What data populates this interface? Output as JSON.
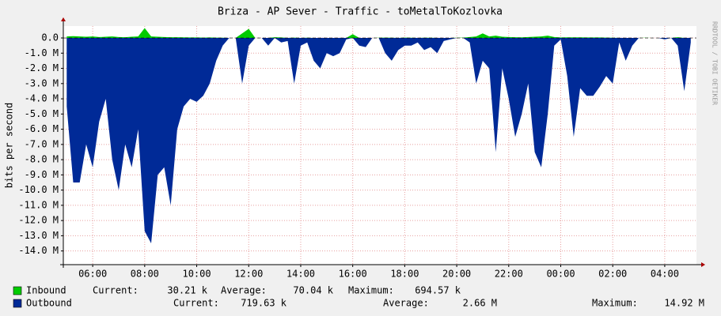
{
  "chart_data": {
    "type": "area",
    "title": "Briza - AP Sever - Traffic - toMetalToKozlovka",
    "y_label": "bits per second",
    "watermark": "RRDTOOL / TOBI OETIKER",
    "grid": true,
    "xlim": [
      4.87,
      29.22
    ],
    "xticks": [
      {
        "value": 6,
        "label": "06:00"
      },
      {
        "value": 8,
        "label": "08:00"
      },
      {
        "value": 10,
        "label": "10:00"
      },
      {
        "value": 12,
        "label": "12:00"
      },
      {
        "value": 14,
        "label": "14:00"
      },
      {
        "value": 16,
        "label": "16:00"
      },
      {
        "value": 18,
        "label": "18:00"
      },
      {
        "value": 20,
        "label": "20:00"
      },
      {
        "value": 22,
        "label": "22:00"
      },
      {
        "value": 24,
        "label": "00:00"
      },
      {
        "value": 26,
        "label": "02:00"
      },
      {
        "value": 28,
        "label": "04:00"
      }
    ],
    "ylim": [
      -14900000,
      780000
    ],
    "yticks": [
      {
        "value": 0,
        "label": "0.0"
      },
      {
        "value": -1000000,
        "label": "-1.0 M"
      },
      {
        "value": -2000000,
        "label": "-2.0 M"
      },
      {
        "value": -3000000,
        "label": "-3.0 M"
      },
      {
        "value": -4000000,
        "label": "-4.0 M"
      },
      {
        "value": -5000000,
        "label": "-5.0 M"
      },
      {
        "value": -6000000,
        "label": "-6.0 M"
      },
      {
        "value": -7000000,
        "label": "-7.0 M"
      },
      {
        "value": -8000000,
        "label": "-8.0 M"
      },
      {
        "value": -9000000,
        "label": "-9.0 M"
      },
      {
        "value": -10000000,
        "label": "-10.0 M"
      },
      {
        "value": -11000000,
        "label": "-11.0 M"
      },
      {
        "value": -12000000,
        "label": "-12.0 M"
      },
      {
        "value": -13000000,
        "label": "-13.0 M"
      },
      {
        "value": -14000000,
        "label": "-14.0 M"
      }
    ],
    "x": [
      5,
      5.25,
      5.5,
      5.75,
      6,
      6.25,
      6.5,
      6.75,
      7,
      7.25,
      7.5,
      7.75,
      8,
      8.25,
      8.5,
      8.75,
      9,
      9.25,
      9.5,
      9.75,
      10,
      10.25,
      10.5,
      10.75,
      11,
      11.25,
      11.5,
      11.75,
      12,
      12.25,
      12.5,
      12.75,
      13,
      13.25,
      13.5,
      13.75,
      14,
      14.25,
      14.5,
      14.75,
      15,
      15.25,
      15.5,
      15.75,
      16,
      16.25,
      16.5,
      16.75,
      17,
      17.25,
      17.5,
      17.75,
      18,
      18.25,
      18.5,
      18.75,
      19,
      19.25,
      19.5,
      19.75,
      20,
      20.25,
      20.5,
      20.75,
      21,
      21.25,
      21.5,
      21.75,
      22,
      22.25,
      22.5,
      22.75,
      23,
      23.25,
      23.5,
      23.75,
      24,
      24.25,
      24.5,
      24.75,
      25,
      25.25,
      25.5,
      25.75,
      26,
      26.25,
      26.5,
      26.75,
      27,
      27.25,
      27.5,
      27.75,
      28,
      28.25,
      28.5,
      28.75,
      29
    ],
    "series": [
      {
        "name": "Outbound",
        "color": "#002a97",
        "stats": [
          {
            "label": "Current:",
            "value": "719.63 k"
          },
          {
            "label": "Average:",
            "value": "2.66 M"
          },
          {
            "label": "Maximum:",
            "value": "14.92 M"
          }
        ],
        "values": [
          -4500000,
          -9500000,
          -9500000,
          -7000000,
          -8500000,
          -5500000,
          -4000000,
          -8000000,
          -10000000,
          -7000000,
          -8500000,
          -6000000,
          -12700000,
          -13500000,
          -9000000,
          -8500000,
          -11000000,
          -6000000,
          -4500000,
          -4000000,
          -4200000,
          -3800000,
          -3000000,
          -1500000,
          -500000,
          0,
          0,
          -3000000,
          -500000,
          0,
          0,
          -500000,
          0,
          -300000,
          -200000,
          -3000000,
          -500000,
          -300000,
          -1500000,
          -2000000,
          -1000000,
          -1200000,
          -1000000,
          -100000,
          0,
          -500000,
          -600000,
          0,
          0,
          -1000000,
          -1500000,
          -800000,
          -500000,
          -500000,
          -300000,
          -800000,
          -600000,
          -1000000,
          -200000,
          -100000,
          0,
          0,
          -300000,
          -3000000,
          -1500000,
          -2000000,
          -7500000,
          -2000000,
          -4000000,
          -6500000,
          -5000000,
          -3000000,
          -7500000,
          -8500000,
          -5000000,
          -500000,
          -100000,
          -2500000,
          -6500000,
          -3300000,
          -3800000,
          -3800000,
          -3200000,
          -2500000,
          -3000000,
          -300000,
          -1500000,
          -500000,
          0,
          0,
          0,
          0,
          -100000,
          0,
          -500000,
          -3500000,
          -300000
        ]
      },
      {
        "name": "Inbound",
        "color": "#00cc00",
        "stats": [
          {
            "label": "Current:",
            "value": "30.21 k"
          },
          {
            "label": "Average:",
            "value": "70.04 k"
          },
          {
            "label": "Maximum:",
            "value": "694.57 k"
          }
        ],
        "values": [
          100000,
          120000,
          100000,
          80000,
          100000,
          60000,
          80000,
          100000,
          60000,
          50000,
          80000,
          100000,
          650000,
          100000,
          80000,
          60000,
          50000,
          50000,
          40000,
          30000,
          30000,
          20000,
          30000,
          20000,
          10000,
          0,
          0,
          300000,
          600000,
          0,
          0,
          0,
          50000,
          30000,
          0,
          20000,
          0,
          10000,
          0,
          0,
          0,
          0,
          0,
          0,
          250000,
          0,
          0,
          0,
          10000,
          20000,
          10000,
          0,
          20000,
          10000,
          0,
          10000,
          10000,
          0,
          0,
          0,
          10000,
          20000,
          60000,
          100000,
          300000,
          100000,
          150000,
          80000,
          60000,
          50000,
          40000,
          60000,
          80000,
          100000,
          150000,
          60000,
          30000,
          40000,
          40000,
          40000,
          30000,
          30000,
          30000,
          20000,
          10000,
          0,
          0,
          0,
          0,
          10000,
          0,
          0,
          0,
          0,
          50000,
          0,
          0
        ]
      }
    ]
  }
}
